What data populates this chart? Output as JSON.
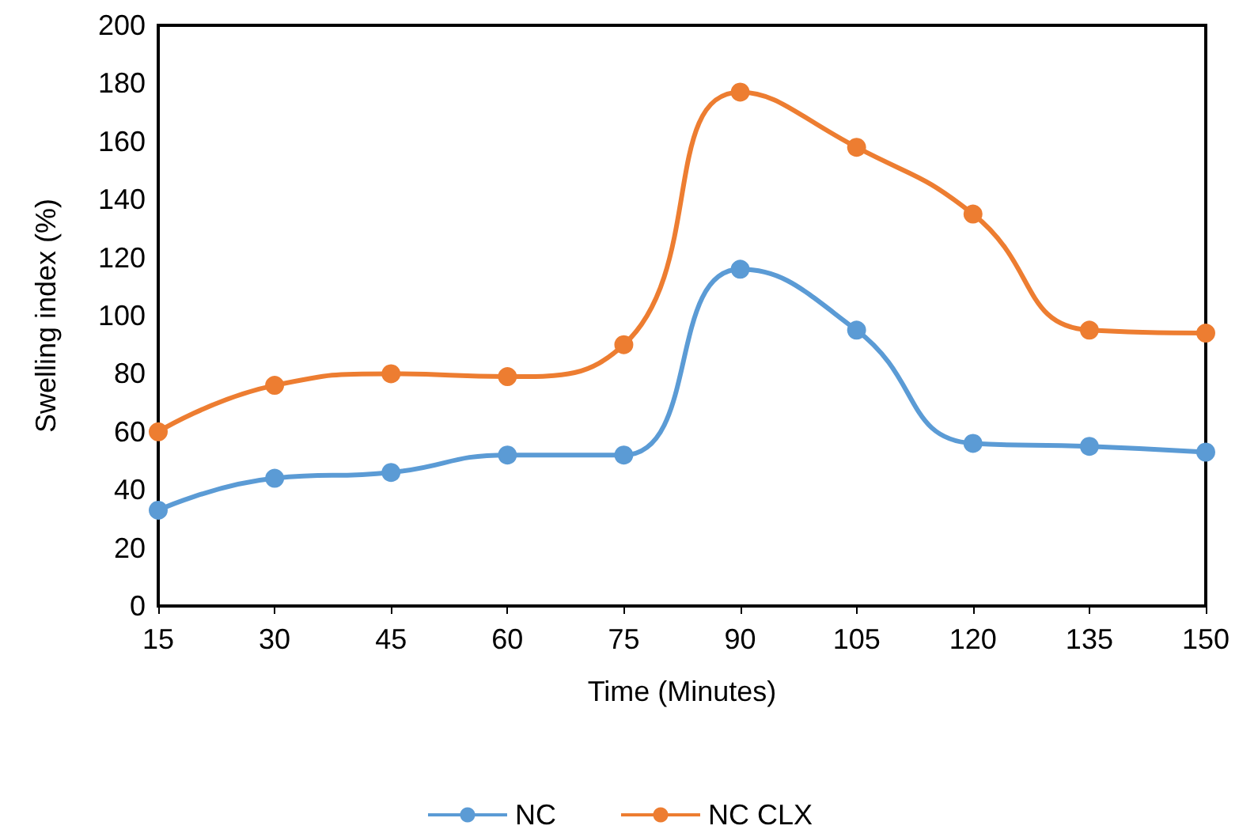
{
  "chart_data": {
    "type": "line",
    "xlabel": "Time (Minutes)",
    "ylabel": "Swelling index (%)",
    "x": [
      15,
      30,
      45,
      60,
      75,
      90,
      105,
      120,
      135,
      150
    ],
    "series": [
      {
        "name": "NC",
        "color": "#5b9bd5",
        "values": [
          33,
          44,
          46,
          52,
          52,
          116,
          95,
          56,
          55,
          53
        ]
      },
      {
        "name": "NC CLX",
        "color": "#ed7d31",
        "values": [
          60,
          76,
          80,
          79,
          90,
          177,
          158,
          135,
          95,
          94
        ]
      }
    ],
    "xlim": [
      15,
      150
    ],
    "xticks": [
      15,
      30,
      45,
      60,
      75,
      90,
      105,
      120,
      135,
      150
    ],
    "ylim": [
      0,
      200
    ],
    "yticks": [
      0,
      20,
      40,
      60,
      80,
      100,
      120,
      140,
      160,
      180,
      200
    ],
    "grid": false,
    "legend": "bottom",
    "marker": "circle",
    "line_style": "solid"
  }
}
